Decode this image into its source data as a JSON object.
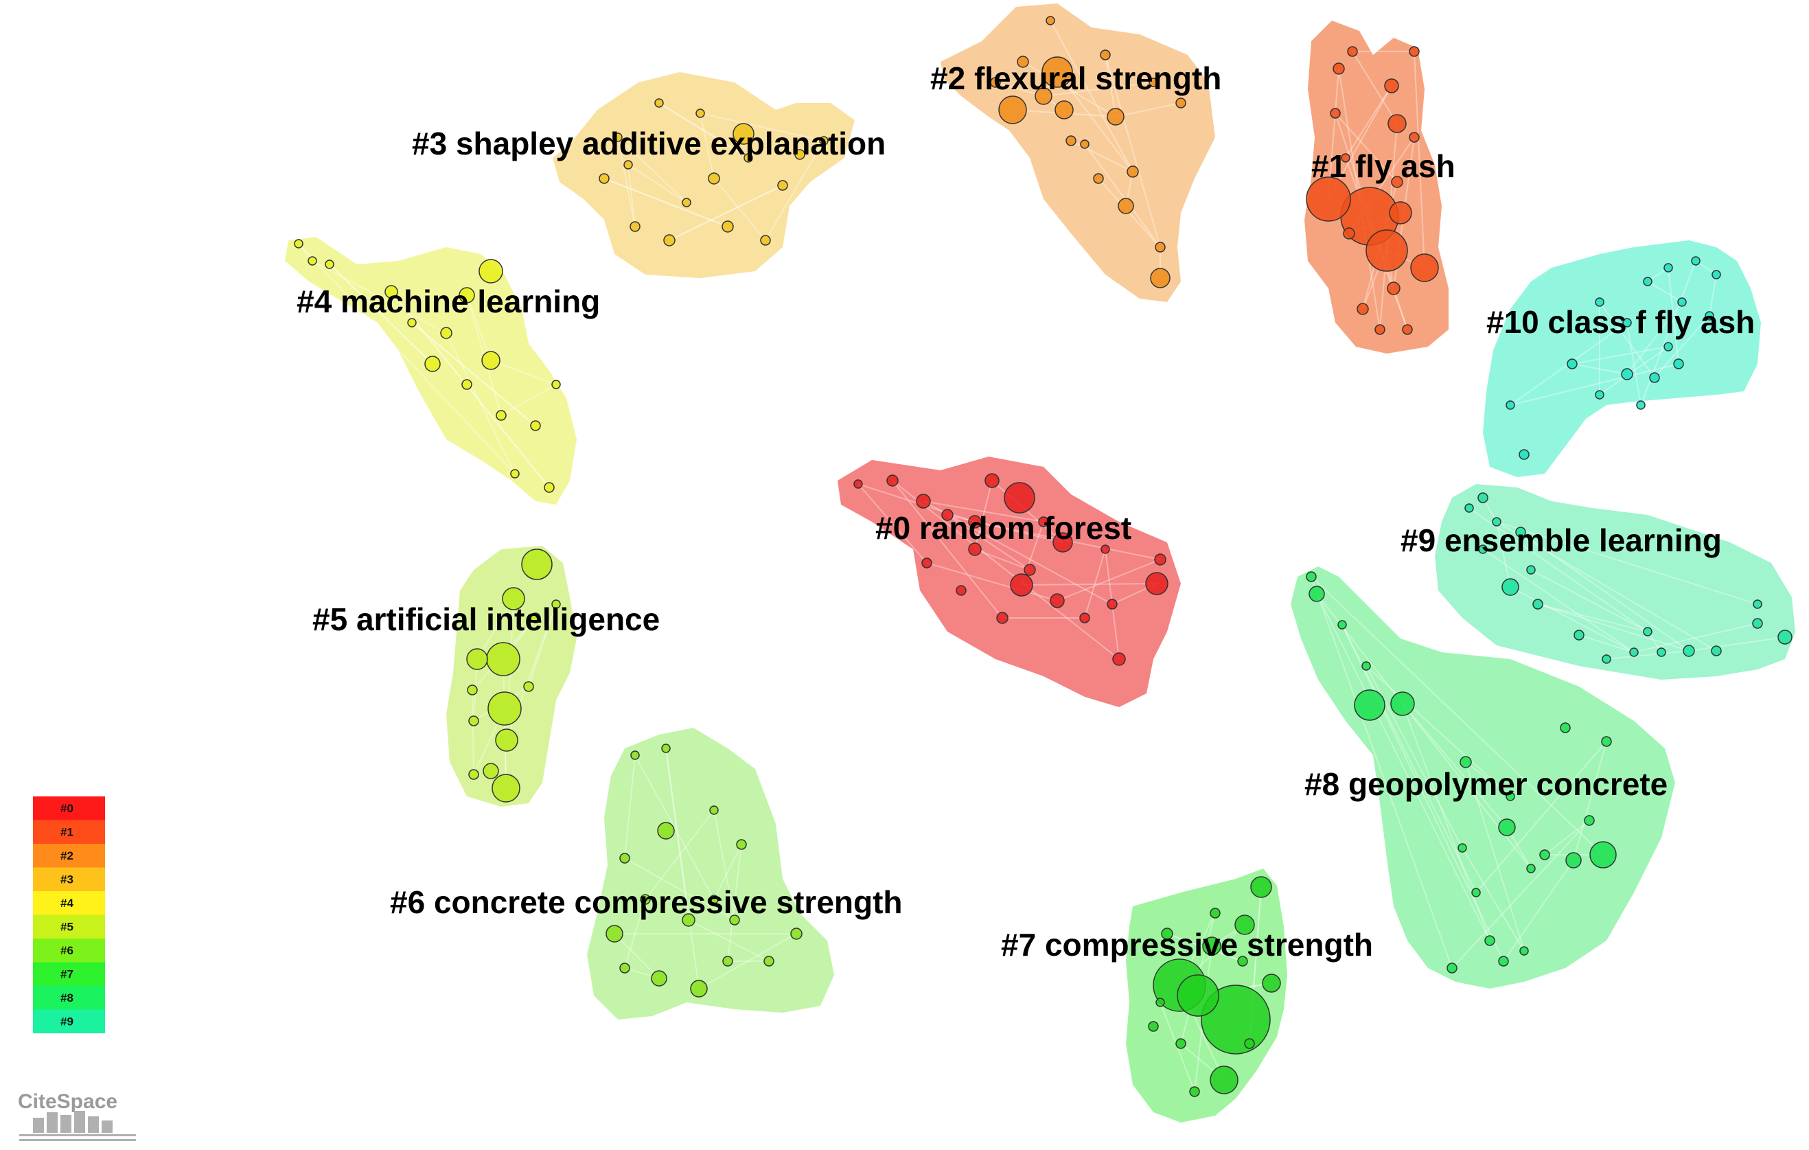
{
  "clusters": [
    {
      "id": "c0",
      "label": "#0 random forest",
      "color": "#f26d6d"
    },
    {
      "id": "c1",
      "label": "#1 fly ash",
      "color": "#f5946a"
    },
    {
      "id": "c2",
      "label": "#2 flexural strength",
      "color": "#f8c48a"
    },
    {
      "id": "c3",
      "label": "#3 shapley additive explanation",
      "color": "#f8dc8e"
    },
    {
      "id": "c4",
      "label": "#4 machine learning",
      "color": "#eff58a"
    },
    {
      "id": "c5",
      "label": "#5 artificial intelligence",
      "color": "#d2f18a"
    },
    {
      "id": "c6",
      "label": "#6 concrete compressive strength",
      "color": "#b8f29a"
    },
    {
      "id": "c7",
      "label": "#7 compressive strength",
      "color": "#8ff28f"
    },
    {
      "id": "c8",
      "label": "#8 geopolymer concrete",
      "color": "#8ff2a8"
    },
    {
      "id": "c9",
      "label": "#9 ensemble learning",
      "color": "#8ff2c6"
    },
    {
      "id": "c10",
      "label": "#10 class f fly ash",
      "color": "#7ff5d8"
    }
  ],
  "legend": {
    "items": [
      "#0",
      "#1",
      "#2",
      "#3",
      "#4",
      "#5",
      "#6",
      "#7",
      "#8",
      "#9"
    ],
    "colors": [
      "#ff1a1a",
      "#ff4d1a",
      "#ff8c1a",
      "#ffc21a",
      "#fff21a",
      "#c8f21a",
      "#7df21a",
      "#2ef22e",
      "#1af25e",
      "#1af2a0"
    ]
  },
  "logo": {
    "text": "CiteSpace"
  }
}
